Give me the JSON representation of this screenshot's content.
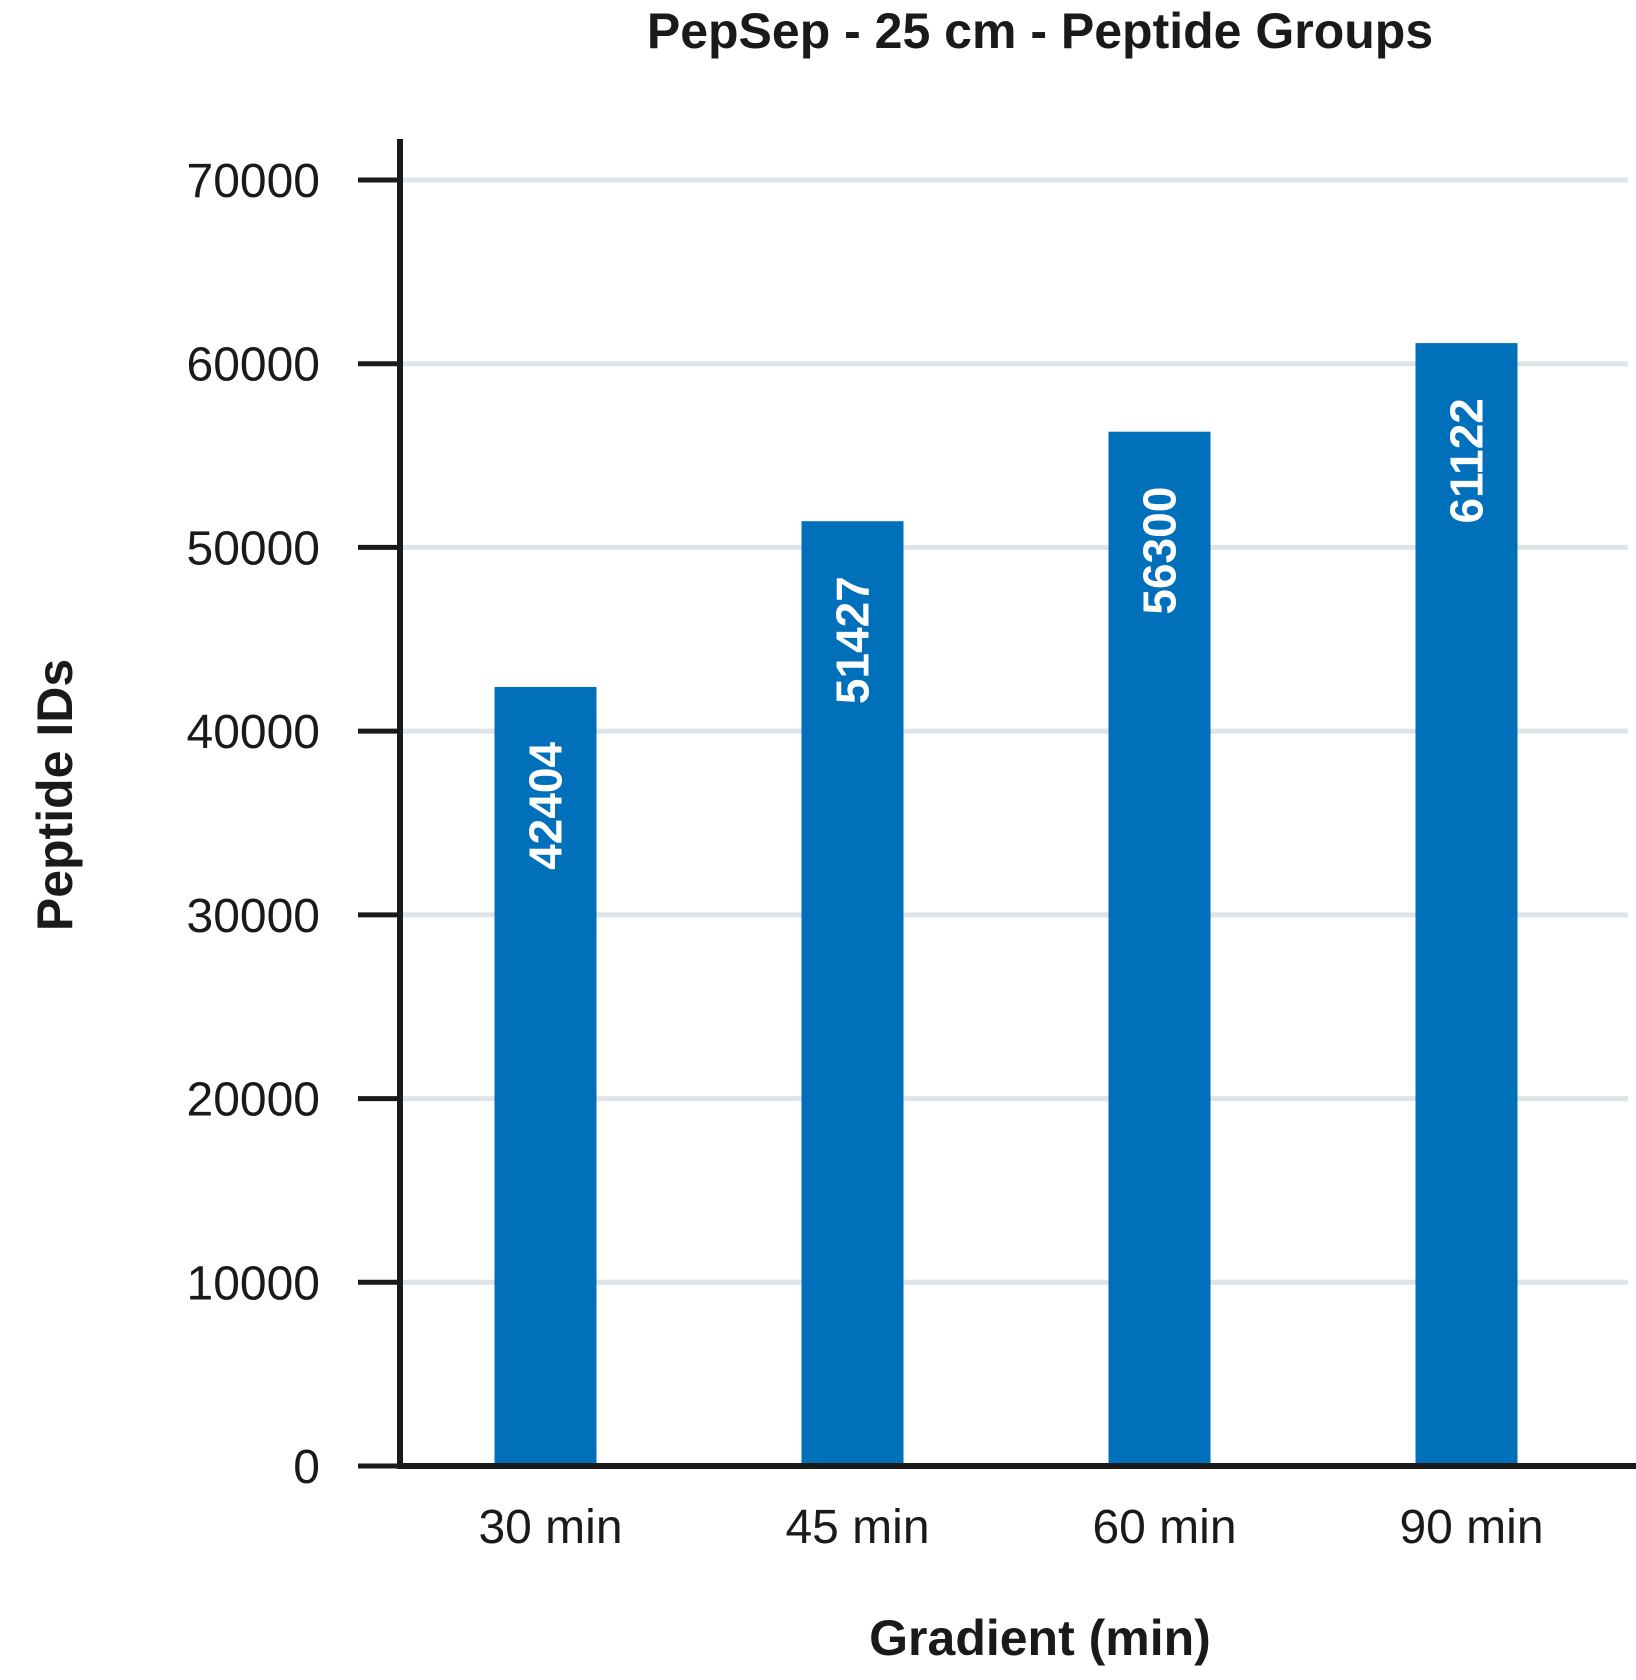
{
  "chart_data": {
    "type": "bar",
    "title": "PepSep - 25 cm - Peptide Groups",
    "xlabel": "Gradient (min)",
    "ylabel": "Peptide IDs",
    "categories": [
      "30 min",
      "45 min",
      "60 min",
      "90 min"
    ],
    "values": [
      42404,
      51427,
      56300,
      61122
    ],
    "data_labels": [
      "42404",
      "51427",
      "56300",
      "61122"
    ],
    "ylim": [
      0,
      70000
    ],
    "yticks": [
      0,
      10000,
      20000,
      30000,
      40000,
      50000,
      60000,
      70000
    ],
    "ytick_labels": [
      "0",
      "10000",
      "20000",
      "30000",
      "40000",
      "50000",
      "60000",
      "70000"
    ],
    "grid": true,
    "legend": "none",
    "colors": {
      "bar": "#0070bb",
      "grid": "#dfe4e8",
      "axis": "#1a1a1a",
      "data_label": "#ffffff"
    }
  }
}
